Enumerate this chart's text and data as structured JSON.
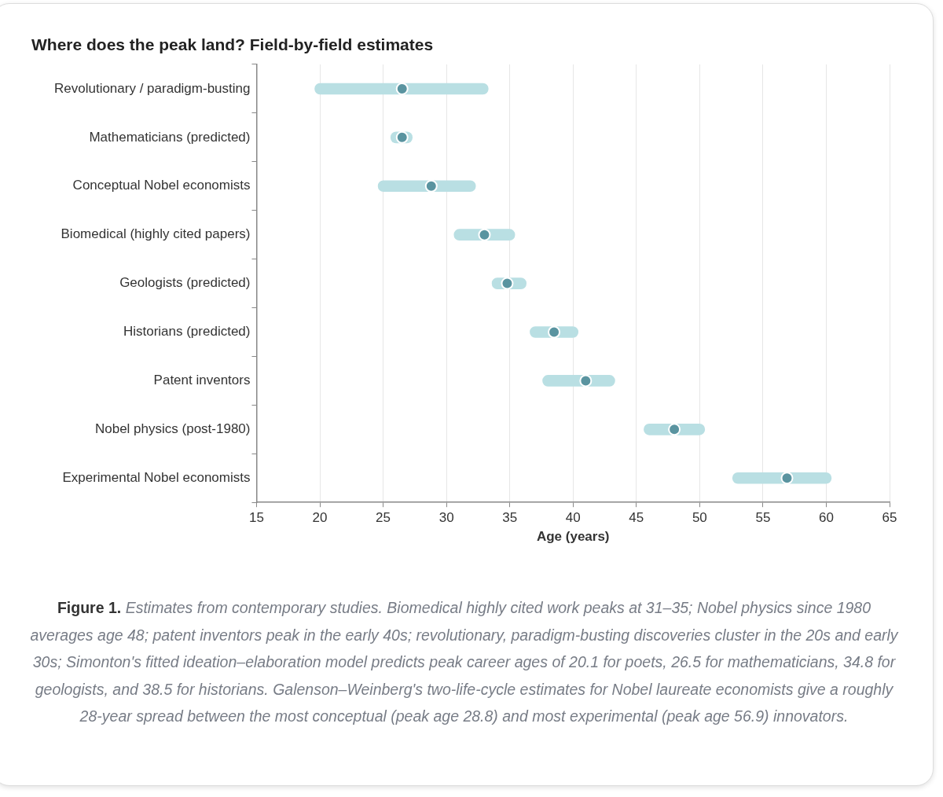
{
  "chart_data": {
    "type": "bar",
    "orientation": "horizontal",
    "title": "Where does the peak land? Field-by-field estimates",
    "xlabel": "Age (years)",
    "categories": [
      "Revolutionary / paradigm-busting",
      "Mathematicians (predicted)",
      "Conceptual Nobel economists",
      "Biomedical (highly cited papers)",
      "Geologists (predicted)",
      "Historians (predicted)",
      "Patent inventors",
      "Nobel physics (post-1980)",
      "Experimental Nobel economists"
    ],
    "series": [
      {
        "color": "#b9dfe3",
        "base": [
          19.6,
          25.6,
          24.6,
          30.6,
          33.6,
          36.6,
          37.6,
          45.6,
          52.6
        ],
        "values": [
          13.7,
          1.7,
          7.7,
          4.8,
          2.7,
          3.8,
          5.7,
          4.8,
          7.8
        ]
      },
      {
        "type": "scatter",
        "color": "#5a94a0",
        "x": [
          "Revolutionary / paradigm-busting",
          "Mathematicians (predicted)",
          "Conceptual Nobel economists",
          "Biomedical (highly cited papers)",
          "Geologists (predicted)",
          "Historians (predicted)",
          "Patent inventors",
          "Nobel physics (post-1980)",
          "Experimental Nobel economists"
        ],
        "values": [
          26.5,
          26.5,
          28.8,
          33,
          34.8,
          38.5,
          41,
          48,
          56.9
        ]
      }
    ],
    "xlim": [
      15,
      65
    ],
    "xticks": [
      15,
      20,
      25,
      30,
      35,
      40,
      45,
      50,
      55,
      60,
      65
    ],
    "grid": "x",
    "marker": "circle",
    "annotations": [
      "Figure 1.",
      "Estimates from contemporary studies. Biomedical highly cited work peaks at 31–35; Nobel physics since 1980 averages age 48; patent inventors peak in the early 40s; revolutionary, paradigm-busting discoveries cluster in the 20s and early 30s; Simonton's fitted ideation–elaboration model predicts peak career ages of 20.1 for poets, 26.5 for mathematicians, 34.8 for geologists, and 38.5 for historians. Galenson–Weinberg's two-life-cycle estimates for Nobel laureate economists give a roughly 28-year spread between the most conceptual (peak age 28.8) and most experimental (peak age 56.9) innovators."
    ]
  }
}
